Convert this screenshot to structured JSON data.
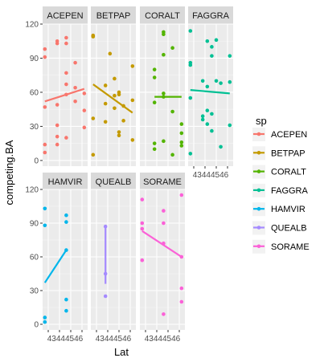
{
  "chart_data": {
    "type": "scatter",
    "xlabel": "Lat",
    "ylabel": "competing.BA",
    "ylim": [
      -5,
      120
    ],
    "xlim": [
      42.5,
      46.5
    ],
    "yticks": [
      0,
      30,
      60,
      90,
      120
    ],
    "xticks": [
      43,
      44,
      45,
      46
    ],
    "xtick_label_text": "43444546",
    "grid": true,
    "facet_layout": {
      "ncol": 4,
      "nrow": 2
    },
    "legend": {
      "title": "sp",
      "position": "right",
      "entries": [
        "ACEPEN",
        "BETPAP",
        "CORALT",
        "FAGGRA",
        "HAMVIR",
        "QUEALB",
        "SORAME"
      ]
    },
    "colors": {
      "ACEPEN": "#F8766D",
      "BETPAP": "#C49A00",
      "CORALT": "#53B400",
      "FAGGRA": "#00C094",
      "HAMVIR": "#00B6EB",
      "QUEALB": "#A58AFF",
      "SORAME": "#FB61D7"
    },
    "facets": [
      {
        "name": "ACEPEN",
        "points": [
          [
            42.7,
            98
          ],
          [
            42.7,
            91
          ],
          [
            42.7,
            47
          ],
          [
            42.7,
            14
          ],
          [
            42.7,
            7
          ],
          [
            43.8,
            105
          ],
          [
            43.8,
            103
          ],
          [
            43.8,
            49
          ],
          [
            43.8,
            31
          ],
          [
            43.8,
            21
          ],
          [
            43.8,
            14
          ],
          [
            44.6,
            108
          ],
          [
            44.6,
            103
          ],
          [
            44.6,
            77
          ],
          [
            44.6,
            67
          ],
          [
            44.6,
            58
          ],
          [
            44.6,
            20
          ],
          [
            45.4,
            86
          ],
          [
            45.4,
            64
          ],
          [
            45.4,
            52
          ],
          [
            46.2,
            59
          ],
          [
            46.2,
            44
          ],
          [
            46.2,
            29
          ]
        ],
        "fit": [
          [
            42.7,
            52
          ],
          [
            46.2,
            63
          ]
        ]
      },
      {
        "name": "BETPAP",
        "points": [
          [
            42.7,
            110
          ],
          [
            42.7,
            109
          ],
          [
            42.7,
            37
          ],
          [
            42.7,
            5
          ],
          [
            43.8,
            66
          ],
          [
            43.8,
            50
          ],
          [
            43.8,
            34
          ],
          [
            44.2,
            94
          ],
          [
            44.6,
            72
          ],
          [
            44.6,
            57
          ],
          [
            44.6,
            46
          ],
          [
            45.0,
            60
          ],
          [
            45.0,
            58
          ],
          [
            45.0,
            25
          ],
          [
            45.0,
            22
          ],
          [
            45.4,
            48
          ],
          [
            45.4,
            35
          ],
          [
            46.2,
            83
          ],
          [
            46.2,
            53
          ],
          [
            46.2,
            18
          ]
        ],
        "fit": [
          [
            42.7,
            67
          ],
          [
            46.2,
            42
          ]
        ]
      },
      {
        "name": "CORALT",
        "points": [
          [
            43.8,
            80
          ],
          [
            43.8,
            73
          ],
          [
            43.8,
            51
          ],
          [
            43.8,
            15
          ],
          [
            43.8,
            10
          ],
          [
            44.6,
            113
          ],
          [
            44.6,
            111
          ],
          [
            44.6,
            93
          ],
          [
            44.6,
            59
          ],
          [
            44.6,
            56
          ],
          [
            44.6,
            17
          ],
          [
            45.4,
            99
          ],
          [
            45.4,
            43
          ],
          [
            45.4,
            5
          ],
          [
            46.2,
            32
          ],
          [
            46.2,
            24
          ],
          [
            46.2,
            16
          ],
          [
            46.2,
            13
          ]
        ],
        "fit": [
          [
            43.8,
            56
          ],
          [
            46.2,
            56
          ]
        ]
      },
      {
        "name": "FAGGRA",
        "points": [
          [
            42.7,
            114
          ],
          [
            42.7,
            86
          ],
          [
            42.7,
            84
          ],
          [
            42.7,
            55
          ],
          [
            42.7,
            6
          ],
          [
            43.8,
            70
          ],
          [
            43.8,
            39
          ],
          [
            43.8,
            36
          ],
          [
            44.2,
            105
          ],
          [
            44.2,
            65
          ],
          [
            44.2,
            44
          ],
          [
            44.2,
            32
          ],
          [
            44.6,
            100
          ],
          [
            44.6,
            92
          ],
          [
            44.6,
            41
          ],
          [
            44.6,
            26
          ],
          [
            45.0,
            106
          ],
          [
            45.0,
            70
          ],
          [
            45.4,
            68
          ],
          [
            45.4,
            12
          ],
          [
            46.2,
            92
          ],
          [
            46.2,
            69
          ],
          [
            46.2,
            31
          ]
        ],
        "fit": [
          [
            42.7,
            62
          ],
          [
            46.2,
            59
          ]
        ]
      },
      {
        "name": "HAMVIR",
        "points": [
          [
            42.7,
            103
          ],
          [
            42.7,
            88
          ],
          [
            42.7,
            6
          ],
          [
            42.7,
            2
          ],
          [
            44.6,
            97
          ],
          [
            44.6,
            91
          ],
          [
            44.6,
            66
          ],
          [
            44.6,
            22
          ],
          [
            44.6,
            12
          ]
        ],
        "fit": [
          [
            42.7,
            37
          ],
          [
            44.6,
            66
          ]
        ]
      },
      {
        "name": "QUEALB",
        "points": [
          [
            43.8,
            87
          ],
          [
            43.8,
            45
          ],
          [
            43.8,
            25
          ]
        ],
        "fit": [
          [
            43.8,
            87
          ],
          [
            43.8,
            36
          ]
        ]
      },
      {
        "name": "SORAME",
        "points": [
          [
            42.7,
            111
          ],
          [
            42.7,
            90
          ],
          [
            42.7,
            85
          ],
          [
            42.7,
            57
          ],
          [
            44.6,
            101
          ],
          [
            44.6,
            90
          ],
          [
            44.6,
            72
          ],
          [
            44.6,
            9
          ],
          [
            46.2,
            115
          ],
          [
            46.2,
            60
          ],
          [
            46.2,
            32
          ],
          [
            46.2,
            20
          ]
        ],
        "fit": [
          [
            42.7,
            83
          ],
          [
            46.2,
            60
          ]
        ]
      }
    ]
  }
}
